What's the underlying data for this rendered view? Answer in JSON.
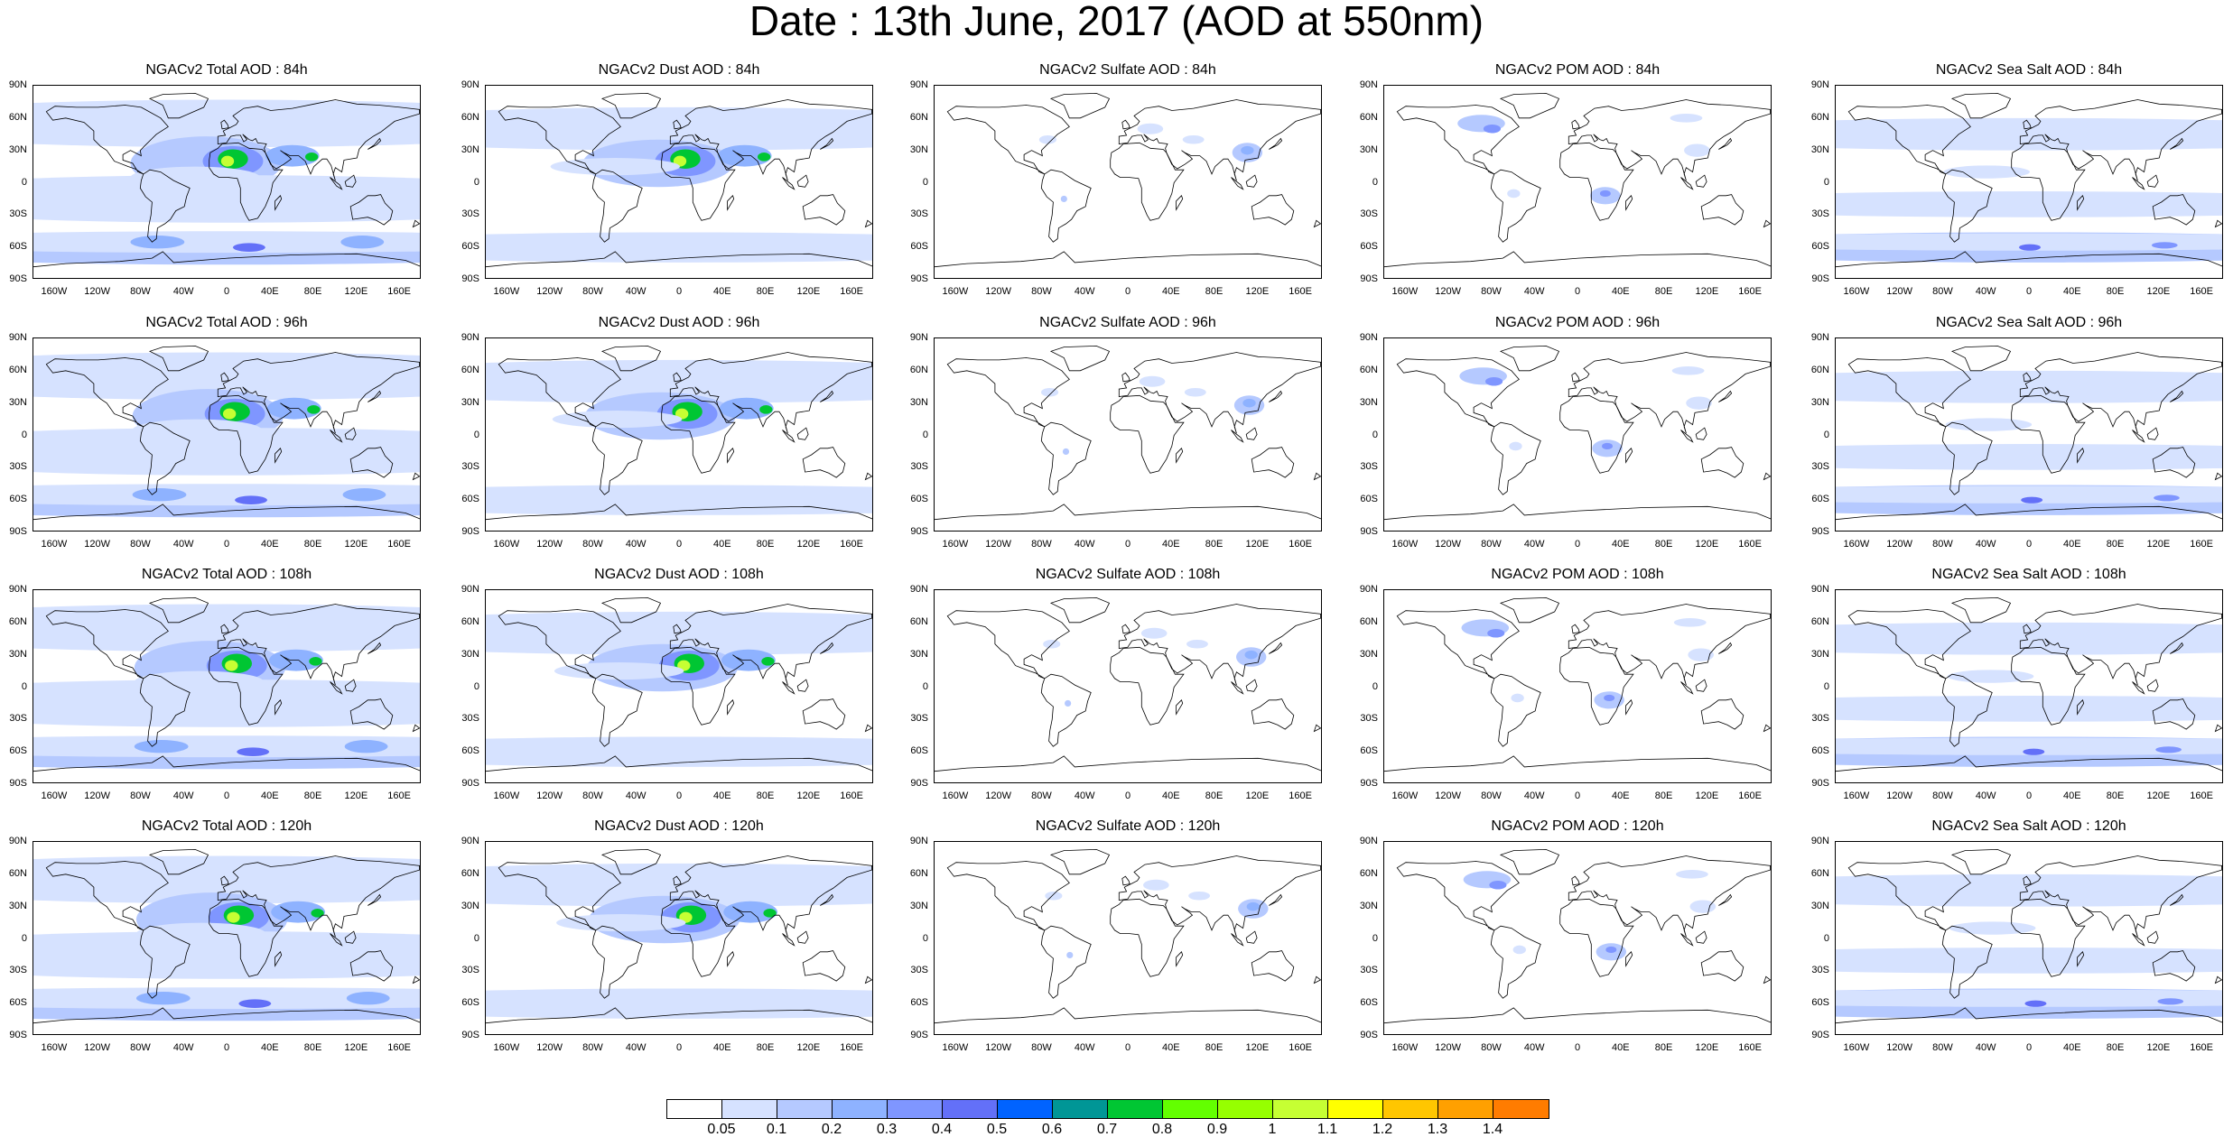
{
  "figure_title": "Date : 13th June, 2017 (AOD at 550nm)",
  "lat_ticks": [
    "90N",
    "60N",
    "30N",
    "0",
    "30S",
    "60S",
    "90S"
  ],
  "lon_ticks": [
    "160W",
    "120W",
    "80W",
    "40W",
    "0",
    "40E",
    "80E",
    "120E",
    "160E"
  ],
  "rows": [
    {
      "forecast_hour": "84h",
      "panels": [
        {
          "title": "NGACv2 Total AOD : 84h",
          "species": "total"
        },
        {
          "title": "NGACv2 Dust AOD : 84h",
          "species": "dust"
        },
        {
          "title": "NGACv2 Sulfate AOD : 84h",
          "species": "sulfate"
        },
        {
          "title": "NGACv2 POM AOD : 84h",
          "species": "pom"
        },
        {
          "title": "NGACv2 Sea Salt AOD : 84h",
          "species": "seasalt"
        }
      ]
    },
    {
      "forecast_hour": "96h",
      "panels": [
        {
          "title": "NGACv2 Total AOD : 96h",
          "species": "total"
        },
        {
          "title": "NGACv2 Dust AOD : 96h",
          "species": "dust"
        },
        {
          "title": "NGACv2 Sulfate AOD : 96h",
          "species": "sulfate"
        },
        {
          "title": "NGACv2 POM AOD : 96h",
          "species": "pom"
        },
        {
          "title": "NGACv2 Sea Salt AOD : 96h",
          "species": "seasalt"
        }
      ]
    },
    {
      "forecast_hour": "108h",
      "panels": [
        {
          "title": "NGACv2 Total AOD : 108h",
          "species": "total"
        },
        {
          "title": "NGACv2 Dust AOD : 108h",
          "species": "dust"
        },
        {
          "title": "NGACv2 Sulfate AOD : 108h",
          "species": "sulfate"
        },
        {
          "title": "NGACv2 POM AOD : 108h",
          "species": "pom"
        },
        {
          "title": "NGACv2 Sea Salt AOD : 108h",
          "species": "seasalt"
        }
      ]
    },
    {
      "forecast_hour": "120h",
      "panels": [
        {
          "title": "NGACv2 Total AOD : 120h",
          "species": "total"
        },
        {
          "title": "NGACv2 Dust AOD : 120h",
          "species": "dust"
        },
        {
          "title": "NGACv2 Sulfate AOD : 120h",
          "species": "sulfate"
        },
        {
          "title": "NGACv2 POM AOD : 120h",
          "species": "pom"
        },
        {
          "title": "NGACv2 Sea Salt  AOD : 120h",
          "species": "seasalt"
        }
      ]
    }
  ],
  "colorbar": {
    "labels": [
      "0.05",
      "0.1",
      "0.2",
      "0.3",
      "0.4",
      "0.5",
      "0.6",
      "0.7",
      "0.8",
      "0.9",
      "1",
      "1.1",
      "1.2",
      "1.3",
      "1.4"
    ],
    "colors": [
      "#ffffff",
      "#d6e2ff",
      "#b5c9ff",
      "#8eb2ff",
      "#7f96ff",
      "#6370f8",
      "#0063ff",
      "#009696",
      "#00c633",
      "#63ff00",
      "#96ff00",
      "#c6ff33",
      "#ffff00",
      "#ffc600",
      "#ffa000",
      "#ff7c00",
      "#ff1900"
    ]
  }
}
